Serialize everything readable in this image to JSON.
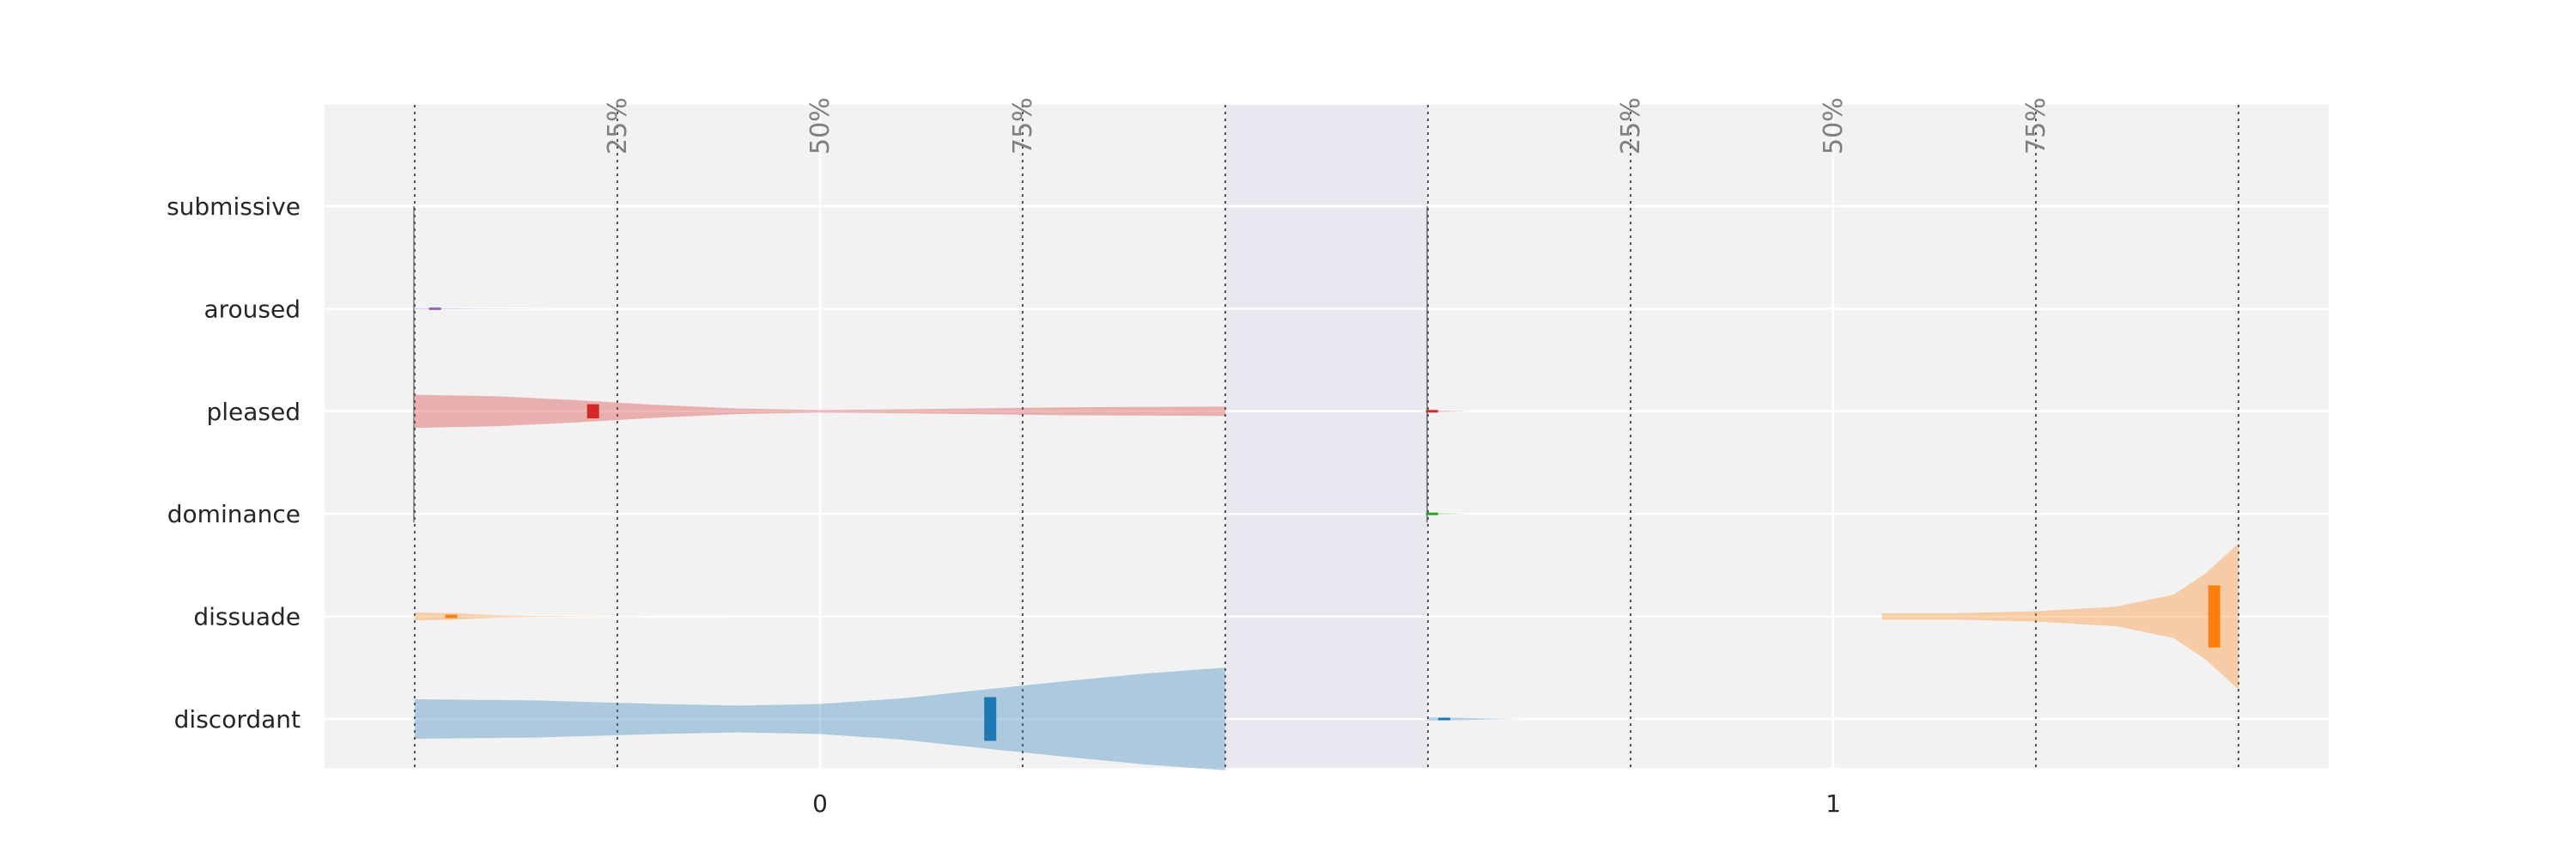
{
  "chart_data": {
    "type": "violin",
    "rows": [
      "submissive",
      "aroused",
      "pleased",
      "dominance",
      "dissuade",
      "discordant"
    ],
    "panels": [
      {
        "x_tick_label": "0",
        "percentile_labels": [
          "25%",
          "50%",
          "75%"
        ]
      },
      {
        "x_tick_label": "1",
        "percentile_labels": [
          "25%",
          "50%",
          "75%"
        ]
      }
    ],
    "x_range_per_panel": [
      0,
      1
    ],
    "percentiles": [
      0.25,
      0.5,
      0.75
    ],
    "grid": true,
    "colors": {
      "aroused": "#9467bd",
      "pleased": "#d62728",
      "dominance": "#2ca02c",
      "dissuade": "#ff7f0e",
      "discordant": "#1f77b4",
      "panel_background": "#f2f2f2",
      "outer_background": "#e8e8f0",
      "grid": "#ffffff",
      "guide_line": "#555555"
    },
    "violins": [
      {
        "panel": 0,
        "row": "aroused",
        "color": "#9467bd",
        "median": 0.025,
        "profile": [
          [
            0,
            0.015
          ],
          [
            0.03,
            0.012
          ],
          [
            0.08,
            0.006
          ],
          [
            0.18,
            0
          ]
        ]
      },
      {
        "panel": 0,
        "row": "pleased",
        "color": "#d62728",
        "median": 0.22,
        "profile": [
          [
            0,
            0.42
          ],
          [
            0.1,
            0.38
          ],
          [
            0.2,
            0.28
          ],
          [
            0.3,
            0.16
          ],
          [
            0.4,
            0.07
          ],
          [
            0.5,
            0.03
          ],
          [
            0.6,
            0.05
          ],
          [
            0.8,
            0.1
          ],
          [
            1.0,
            0.12
          ]
        ]
      },
      {
        "panel": 0,
        "row": "dissuade",
        "color": "#ff7f0e",
        "median": 0.045,
        "profile": [
          [
            0,
            0.1
          ],
          [
            0.05,
            0.08
          ],
          [
            0.1,
            0.03
          ],
          [
            0.15,
            0.01
          ],
          [
            0.25,
            0.003
          ],
          [
            0.45,
            0
          ]
        ]
      },
      {
        "panel": 0,
        "row": "discordant",
        "color": "#1f77b4",
        "median": 0.71,
        "profile": [
          [
            0,
            0.5
          ],
          [
            0.15,
            0.47
          ],
          [
            0.3,
            0.38
          ],
          [
            0.4,
            0.34
          ],
          [
            0.5,
            0.38
          ],
          [
            0.6,
            0.52
          ],
          [
            0.7,
            0.74
          ],
          [
            0.8,
            0.95
          ],
          [
            0.9,
            1.15
          ],
          [
            1.0,
            1.3
          ]
        ]
      },
      {
        "panel": 1,
        "row": "pleased",
        "color": "#d62728",
        "median": 0.005,
        "profile": [
          [
            0,
            0.02
          ],
          [
            0.02,
            0.015
          ],
          [
            0.05,
            0
          ]
        ]
      },
      {
        "panel": 1,
        "row": "dominance",
        "color": "#2ca02c",
        "median": 0.005,
        "profile": [
          [
            0,
            0.02
          ],
          [
            0.02,
            0.015
          ],
          [
            0.05,
            0
          ]
        ]
      },
      {
        "panel": 1,
        "row": "dissuade",
        "color": "#ff7f0e",
        "median": 0.97,
        "profile": [
          [
            0.56,
            0.08
          ],
          [
            0.65,
            0.08
          ],
          [
            0.75,
            0.13
          ],
          [
            0.85,
            0.25
          ],
          [
            0.92,
            0.55
          ],
          [
            0.96,
            1.1
          ],
          [
            1.0,
            1.85
          ]
        ]
      },
      {
        "panel": 1,
        "row": "discordant",
        "color": "#1f77b4",
        "median": 0.02,
        "profile": [
          [
            0,
            0.04
          ],
          [
            0.04,
            0.03
          ],
          [
            0.08,
            0.01
          ],
          [
            0.12,
            0
          ]
        ]
      }
    ]
  }
}
